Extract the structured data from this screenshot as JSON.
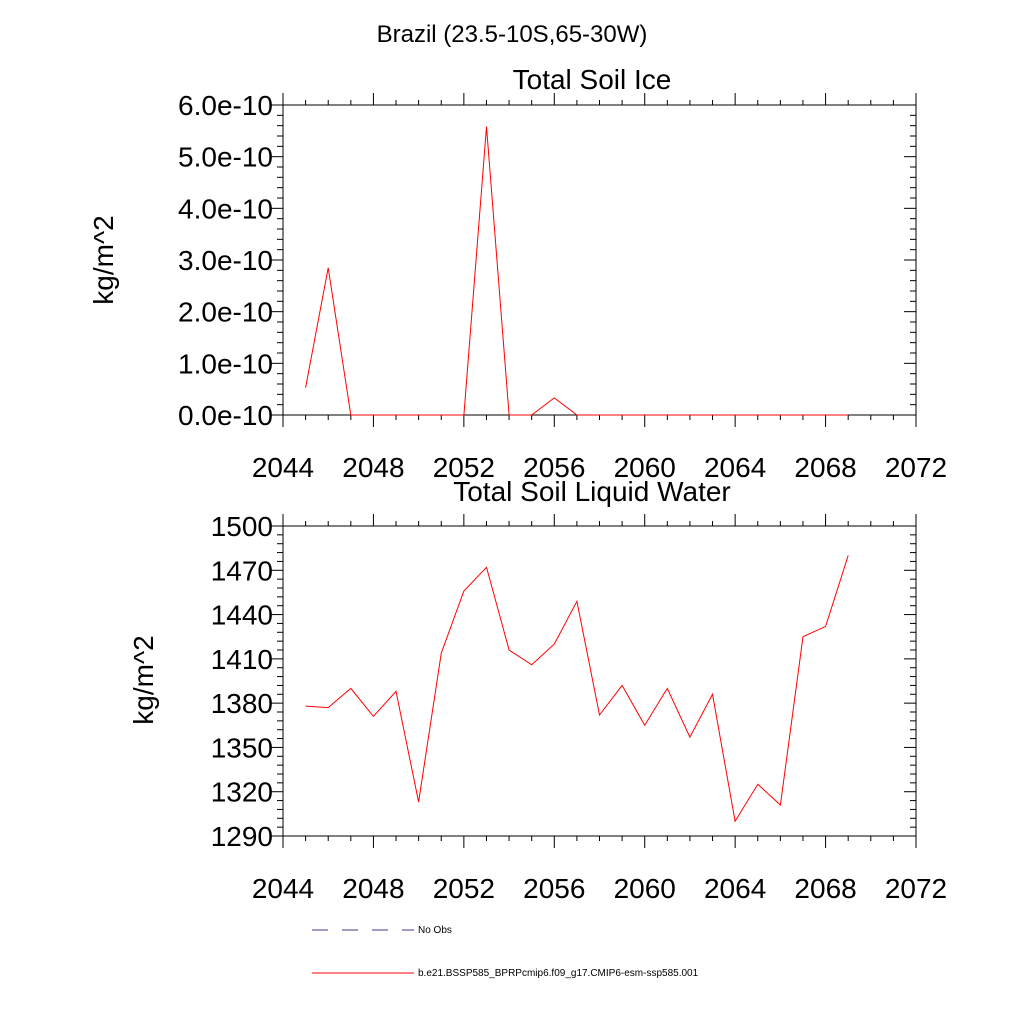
{
  "page_title": "Brazil (23.5-10S,65-30W)",
  "colors": {
    "series": "#ff0000",
    "obs": "#3b3b8f",
    "axis": "#000000"
  },
  "legend": {
    "items": [
      {
        "label": "No Obs",
        "style": "dashed",
        "color": "#3b3b8f"
      },
      {
        "label": "b.e21.BSSP585_BPRPcmip6.f09_g17.CMIP6-esm-ssp585.001",
        "style": "solid",
        "color": "#ff0000"
      }
    ]
  },
  "chart_data": [
    {
      "type": "line",
      "title": "Total Soil Ice",
      "xlabel": "",
      "ylabel": "kg/m^2",
      "xlim": [
        2044,
        2072
      ],
      "ylim": [
        0,
        6e-10
      ],
      "x_ticks": [
        "2044",
        "2048",
        "2052",
        "2056",
        "2060",
        "2064",
        "2068",
        "2072"
      ],
      "y_ticks": [
        "0.0e-10",
        "1.0e-10",
        "2.0e-10",
        "3.0e-10",
        "4.0e-10",
        "5.0e-10",
        "6.0e-10"
      ],
      "grid": false,
      "series": [
        {
          "name": "b.e21.BSSP585_BPRPcmip6.f09_g17.CMIP6-esm-ssp585.001",
          "x": [
            2045,
            2046,
            2047,
            2048,
            2049,
            2050,
            2051,
            2052,
            2053,
            2054,
            2055,
            2056,
            2057,
            2058,
            2059,
            2060,
            2061,
            2062,
            2063,
            2064,
            2065,
            2066,
            2067,
            2068,
            2069
          ],
          "values": [
            5.3e-11,
            2.85e-10,
            0,
            0,
            0,
            0,
            0,
            0,
            5.58e-10,
            0,
            0,
            3.3e-11,
            0,
            0,
            0,
            0,
            0,
            0,
            0,
            0,
            0,
            0,
            0,
            0,
            0
          ]
        }
      ]
    },
    {
      "type": "line",
      "title": "Total Soil Liquid Water",
      "xlabel": "",
      "ylabel": "kg/m^2",
      "xlim": [
        2044,
        2072
      ],
      "ylim": [
        1290,
        1500
      ],
      "x_ticks": [
        "2044",
        "2048",
        "2052",
        "2056",
        "2060",
        "2064",
        "2068",
        "2072"
      ],
      "y_ticks": [
        "1290",
        "1320",
        "1350",
        "1380",
        "1410",
        "1440",
        "1470",
        "1500"
      ],
      "grid": false,
      "series": [
        {
          "name": "b.e21.BSSP585_BPRPcmip6.f09_g17.CMIP6-esm-ssp585.001",
          "x": [
            2045,
            2046,
            2047,
            2048,
            2049,
            2050,
            2051,
            2052,
            2053,
            2054,
            2055,
            2056,
            2057,
            2058,
            2059,
            2060,
            2061,
            2062,
            2063,
            2064,
            2065,
            2066,
            2067,
            2068,
            2069
          ],
          "values": [
            1378,
            1377,
            1390,
            1371,
            1388,
            1313,
            1414,
            1456,
            1472,
            1416,
            1406,
            1420,
            1449,
            1372,
            1392,
            1365,
            1390,
            1357,
            1386,
            1300,
            1325,
            1311,
            1425,
            1432,
            1480
          ]
        }
      ]
    }
  ]
}
